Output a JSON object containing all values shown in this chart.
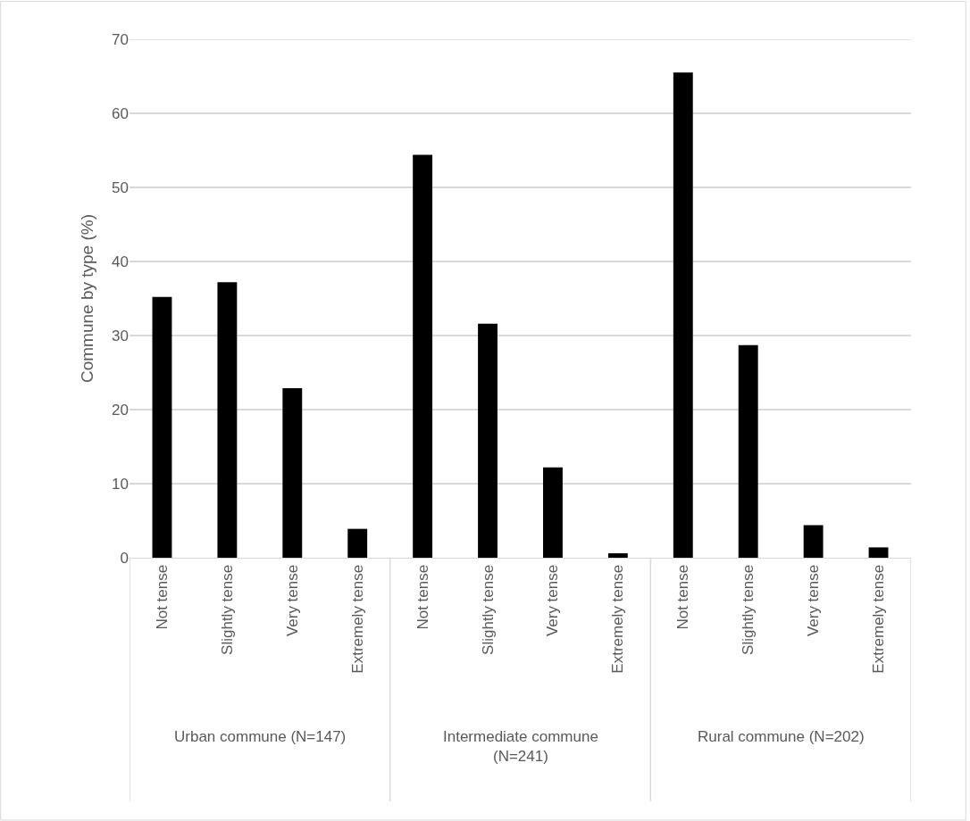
{
  "chart_data": {
    "type": "bar",
    "ylabel": "Commune by type (%)",
    "categories": [
      "Not tense",
      "Slightly tense",
      "Very tense",
      "Extremely tense",
      "Not tense",
      "Slightly tense",
      "Very tense",
      "Extremely tense",
      "Not tense",
      "Slightly tense",
      "Very tense",
      "Extremely tense"
    ],
    "values": [
      35.2,
      37.2,
      22.9,
      3.9,
      54.4,
      31.6,
      12.2,
      0.6,
      65.5,
      28.7,
      4.4,
      1.4
    ],
    "color": "#000000",
    "annotations": [
      "Urban commune (N=147)",
      "Intermediate commune (N=241)",
      "Rural commune (N=202)"
    ],
    "ylim": [
      0,
      70
    ],
    "yticks": [
      0,
      10,
      20,
      30,
      40,
      50,
      60,
      70
    ],
    "grid": "y"
  }
}
